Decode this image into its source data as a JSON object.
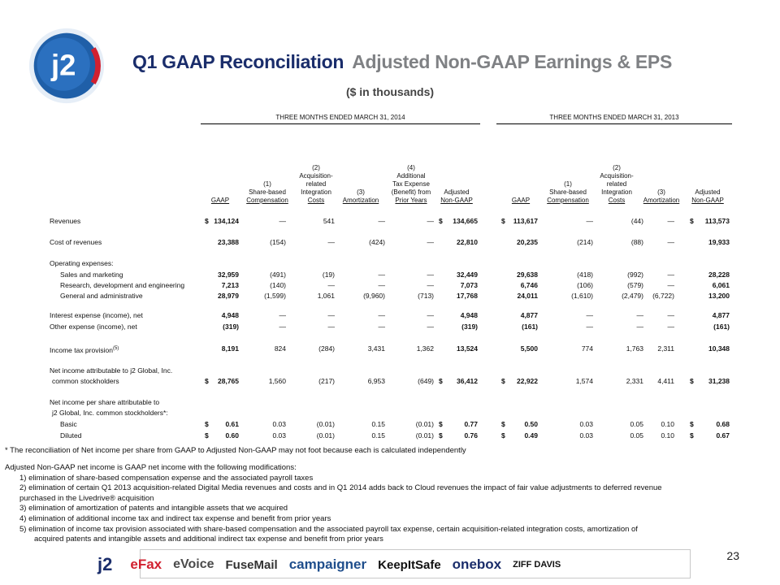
{
  "header": {
    "logo_text": "j2",
    "title_part1": "Q1 GAAP Reconciliation",
    "title_part2": "Adjusted Non-GAAP Earnings & EPS",
    "subtitle": "($ in thousands)"
  },
  "periods": {
    "p2014": "THREE MONTHS ENDED MARCH 31, 2014",
    "p2013": "THREE MONTHS ENDED MARCH 31, 2013"
  },
  "columns_2014": [
    {
      "lines": [
        "GAAP"
      ]
    },
    {
      "lines": [
        "(1)",
        "Share-based",
        "Compensation"
      ]
    },
    {
      "lines": [
        "(2)",
        "Acquisition-",
        "related",
        "Integration",
        "Costs"
      ]
    },
    {
      "lines": [
        "(3)",
        "Amortization"
      ]
    },
    {
      "lines": [
        "(4)",
        "Additional",
        "Tax Expense",
        "(Benefit) from",
        "Prior Years"
      ]
    },
    {
      "lines": [
        "Adjusted",
        "Non-GAAP"
      ]
    }
  ],
  "columns_2013": [
    {
      "lines": [
        "GAAP"
      ]
    },
    {
      "lines": [
        "(1)",
        "Share-based",
        "Compensation"
      ]
    },
    {
      "lines": [
        "(2)",
        "Acquisition-",
        "related",
        "Integration",
        "Costs"
      ]
    },
    {
      "lines": [
        "(3)",
        "Amortization"
      ]
    },
    {
      "lines": [
        "Adjusted",
        "Non-GAAP"
      ]
    }
  ],
  "rows": [
    {
      "label": "Revenues",
      "v14": [
        "134,124",
        "—",
        "541",
        "—",
        "—",
        "134,665"
      ],
      "v13": [
        "113,617",
        "—",
        "(44)",
        "—",
        "113,573"
      ],
      "dollar": true
    },
    {
      "label": "Cost of revenues",
      "v14": [
        "23,388",
        "(154)",
        "—",
        "(424)",
        "—",
        "22,810"
      ],
      "v13": [
        "20,235",
        "(214)",
        "(88)",
        "—",
        "19,933"
      ]
    },
    {
      "label": "Operating expenses:"
    },
    {
      "label": "Sales and marketing",
      "indent": true,
      "v14": [
        "32,959",
        "(491)",
        "(19)",
        "—",
        "—",
        "32,449"
      ],
      "v13": [
        "29,638",
        "(418)",
        "(992)",
        "—",
        "28,228"
      ]
    },
    {
      "label": "Research, development and engineering",
      "indent": true,
      "v14": [
        "7,213",
        "(140)",
        "—",
        "—",
        "—",
        "7,073"
      ],
      "v13": [
        "6,746",
        "(106)",
        "(579)",
        "—",
        "6,061"
      ]
    },
    {
      "label": "General and administrative",
      "indent": true,
      "v14": [
        "28,979",
        "(1,599)",
        "1,061",
        "(9,960)",
        "(713)",
        "17,768"
      ],
      "v13": [
        "24,011",
        "(1,610)",
        "(2,479)",
        "(6,722)",
        "13,200"
      ]
    },
    {
      "label": "Interest expense (income), net",
      "v14": [
        "4,948",
        "—",
        "—",
        "—",
        "—",
        "4,948"
      ],
      "v13": [
        "4,877",
        "—",
        "—",
        "—",
        "4,877"
      ]
    },
    {
      "label": "Other expense (income), net",
      "v14": [
        "(319)",
        "—",
        "—",
        "—",
        "—",
        "(319)"
      ],
      "v13": [
        "(161)",
        "—",
        "—",
        "—",
        "(161)"
      ]
    },
    {
      "label": "Income tax provision",
      "sup": "(5)",
      "v14": [
        "8,191",
        "824",
        "(284)",
        "3,431",
        "1,362",
        "13,524"
      ],
      "v13": [
        "5,500",
        "774",
        "1,763",
        "2,311",
        "10,348"
      ]
    },
    {
      "label": "Net income attributable to j2 Global, Inc."
    },
    {
      "label": "common stockholders",
      "indent_small": true,
      "v14": [
        "28,765",
        "1,560",
        "(217)",
        "6,953",
        "(649)",
        "36,412"
      ],
      "v13": [
        "22,922",
        "1,574",
        "2,331",
        "4,411",
        "31,238"
      ],
      "dollar": true
    },
    {
      "label": "Net income per share attributable to"
    },
    {
      "label": "j2 Global, Inc. common stockholders*:",
      "indent_small": true
    },
    {
      "label": "Basic",
      "indent": true,
      "v14": [
        "0.61",
        "0.03",
        "(0.01)",
        "0.15",
        "(0.01)",
        "0.77"
      ],
      "v13": [
        "0.50",
        "0.03",
        "0.05",
        "0.10",
        "0.68"
      ],
      "dollar": true
    },
    {
      "label": "Diluted",
      "indent": true,
      "v14": [
        "0.60",
        "0.03",
        "(0.01)",
        "0.15",
        "(0.01)",
        "0.76"
      ],
      "v13": [
        "0.49",
        "0.03",
        "0.05",
        "0.10",
        "0.67"
      ],
      "dollar": true
    }
  ],
  "dollar_sign": "$",
  "footnote": "* The reconciliation of Net income per share from GAAP to Adjusted Non-GAAP may not foot because each is calculated independently",
  "modifications": {
    "intro": "Adjusted Non-GAAP net income is GAAP net income with the following modifications:",
    "items": [
      "1) elimination of share-based compensation expense and the associated payroll taxes",
      "2) elimination of certain Q1 2013 acquisition-related Digital Media revenues and costs and in Q1 2014 adds back to Cloud revenues the impact of fair value adjustments to deferred revenue",
      "purchased in the Livedrive® acquisition",
      "3) elimination of amortization of patents and intangible assets that we acquired",
      "4) elimination of additional income tax and indirect tax expense and benefit from prior years",
      "5) elimination of income tax provision associated with share-based compensation and the associated payroll tax expense, certain acquisition-related integration costs, amortization of",
      "acquired patents and intangible assets and additional indirect tax expense and benefit from prior years"
    ]
  },
  "page_number": "23",
  "brands": [
    {
      "name": "j2",
      "color": "#1a2d6b",
      "icon": "j2-logo-icon"
    },
    {
      "name": "eFax",
      "color": "#d1202f",
      "icon": "efax-logo-icon"
    },
    {
      "name": "eVoice",
      "color": "#4b4b4b",
      "icon": "evoice-logo-icon"
    },
    {
      "name": "FuseMail",
      "color": "#333333",
      "icon": "fusemail-logo-icon"
    },
    {
      "name": "campaigner",
      "color": "#1f4e8c",
      "icon": "campaigner-logo-icon"
    },
    {
      "name": "KeepItSafe",
      "color": "#111111",
      "icon": "keepitsafe-logo-icon"
    },
    {
      "name": "onebox",
      "color": "#1a2d6b",
      "icon": "onebox-logo-icon"
    },
    {
      "name": "ZIFF DAVIS",
      "color": "#111111",
      "icon": "ziffdavis-logo-icon"
    }
  ],
  "colors": {
    "title_primary": "#1a2d6b",
    "title_secondary": "#7f8184",
    "logo_red": "#d1202f",
    "logo_blue": "#1f5fa8"
  }
}
